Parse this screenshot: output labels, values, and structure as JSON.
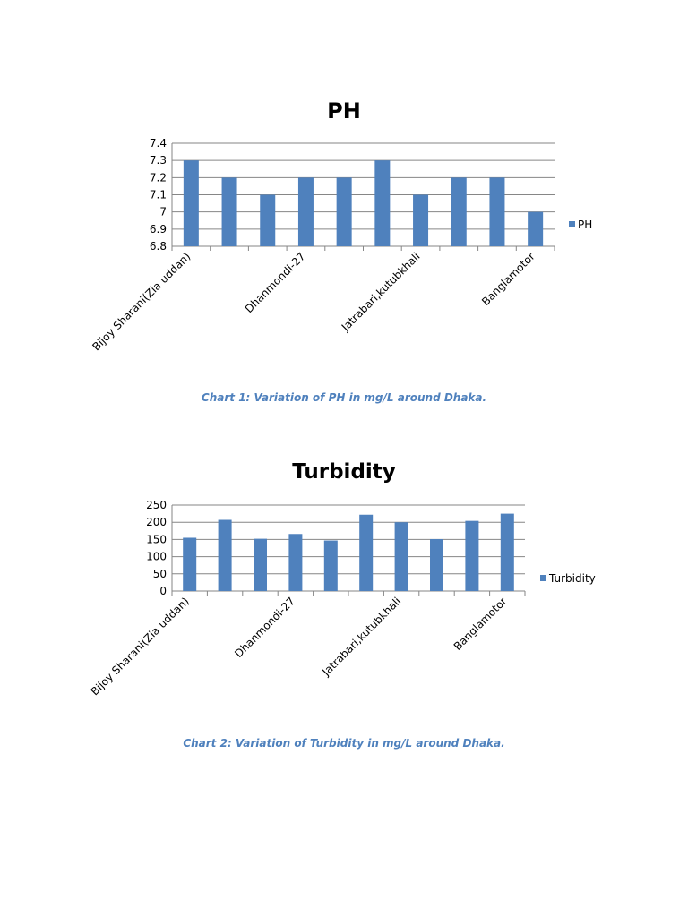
{
  "colors": {
    "bar": "#4f81bd",
    "grid": "#868686",
    "axis": "#868686",
    "text": "#000000",
    "caption": "#4f81bd"
  },
  "captions": {
    "chart1": "Chart  1: Variation of PH in mg/L around Dhaka.",
    "chart2": "Chart  2: Variation of Turbidity in mg/L around Dhaka."
  },
  "chart_data": [
    {
      "type": "bar",
      "title": "PH",
      "categories": [
        "Bijoy Sharani(Zia uddan)",
        "",
        "",
        "Dhanmondi-27",
        "",
        "",
        "Jatrabari,kutubkhali",
        "",
        "",
        "Banglamotor"
      ],
      "series": [
        {
          "name": "PH",
          "values": [
            7.3,
            7.2,
            7.1,
            7.2,
            7.2,
            7.3,
            7.1,
            7.2,
            7.2,
            7.0
          ]
        }
      ],
      "ylim": [
        6.8,
        7.4
      ],
      "yticks": [
        "6.8",
        "6.9",
        "7",
        "7.1",
        "7.2",
        "7.3",
        "7.4"
      ],
      "xlabel": "",
      "ylabel": "",
      "grid": true,
      "legend": "right"
    },
    {
      "type": "bar",
      "title": "Turbidity",
      "categories": [
        "Bijoy Sharani(Zia uddan)",
        "",
        "",
        "Dhanmondi-27",
        "",
        "",
        "Jatrabari,kutubkhali",
        "",
        "",
        "Banglamotor"
      ],
      "series": [
        {
          "name": "Turbidity",
          "values": [
            155,
            207,
            152,
            166,
            147,
            222,
            200,
            151,
            204,
            225
          ]
        }
      ],
      "ylim": [
        0,
        250
      ],
      "yticks": [
        "0",
        "50",
        "100",
        "150",
        "200",
        "250"
      ],
      "xlabel": "",
      "ylabel": "",
      "grid": true,
      "legend": "right"
    }
  ]
}
